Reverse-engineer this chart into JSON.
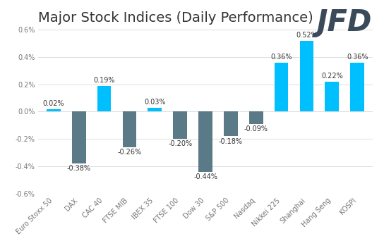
{
  "title": "Major Stock Indices (Daily Performance)",
  "categories": [
    "Euro Stoxx 50",
    "DAX",
    "CAC 40",
    "FTSE MIB",
    "IBEX 35",
    "FTSE 100",
    "Dow 30",
    "S&P 500",
    "Nasdaq",
    "Nikkei 225",
    "Shanghai",
    "Hang Seng",
    "KOSPI"
  ],
  "values": [
    0.02,
    -0.38,
    0.19,
    -0.26,
    0.03,
    -0.2,
    -0.44,
    -0.18,
    -0.09,
    0.36,
    0.52,
    0.22,
    0.36
  ],
  "bar_color_positive": "#00BFFF",
  "bar_color_negative": "#5B7A87",
  "ylim": [
    -0.6,
    0.6
  ],
  "yticks": [
    -0.6,
    -0.4,
    -0.2,
    0.0,
    0.2,
    0.4,
    0.6
  ],
  "ytick_labels": [
    "-0.6%",
    "-0.4%",
    "-0.2%",
    "0.0%",
    "0.2%",
    "0.4%",
    "0.6%"
  ],
  "title_fontsize": 14,
  "tick_fontsize": 7,
  "label_fontsize": 7,
  "background_color": "#ffffff",
  "grid_color": "#dddddd",
  "logo_text": "JFD",
  "logo_color": "#3a4a5a",
  "logo_fontsize": 30
}
